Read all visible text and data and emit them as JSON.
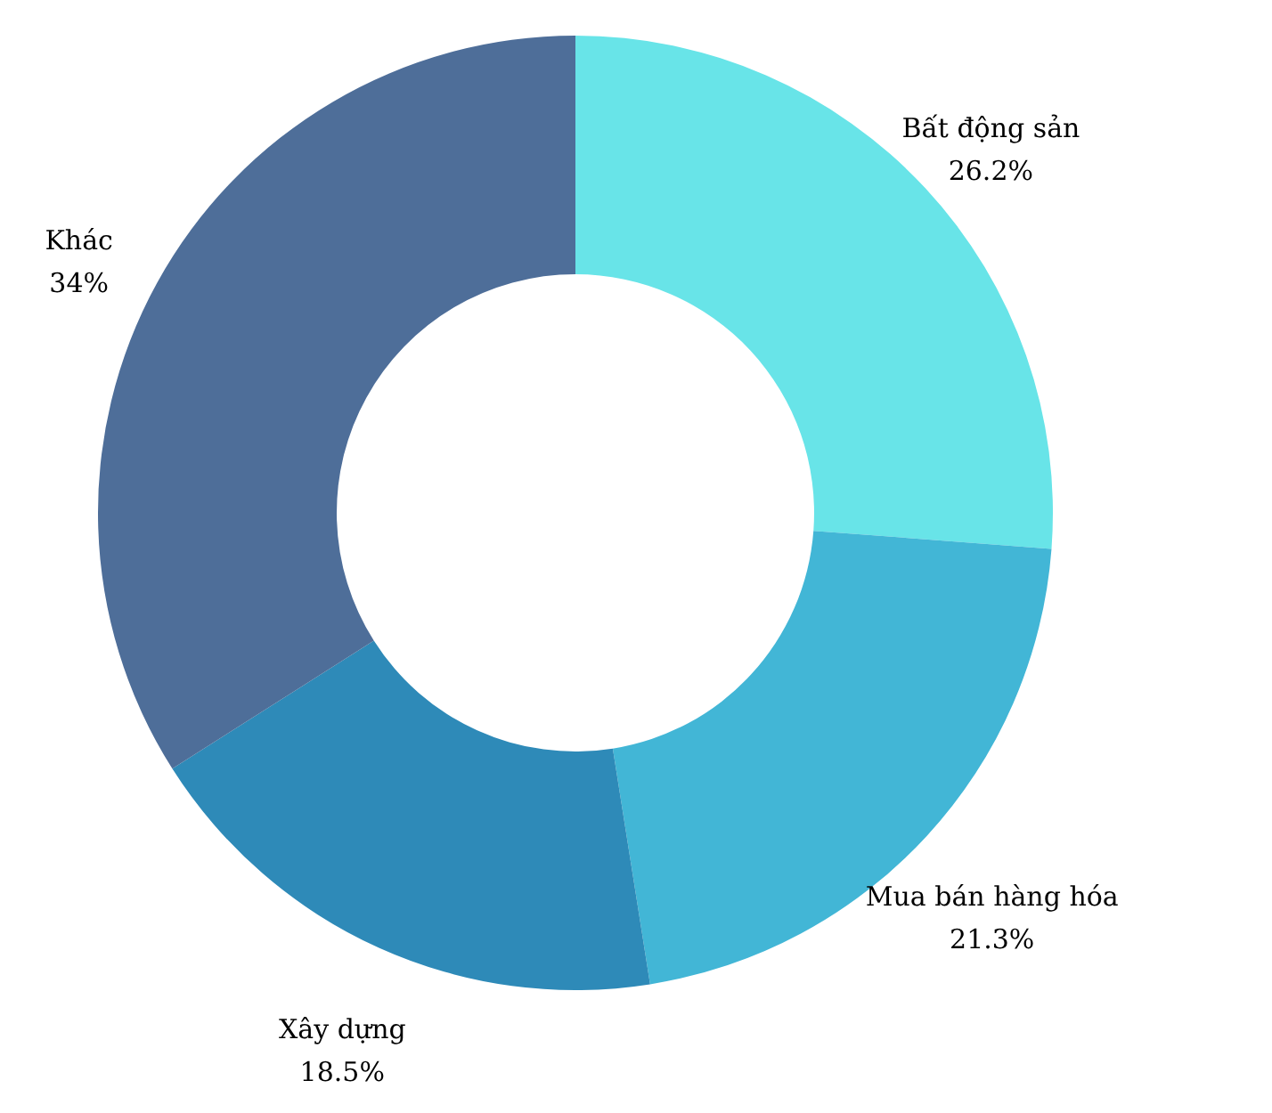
{
  "chart_data": {
    "type": "donut",
    "categories": [
      "Bất động sản",
      "Mua bán hàng hóa",
      "Xây dựng",
      "Khác"
    ],
    "values": [
      26.2,
      21.3,
      18.5,
      34
    ],
    "value_labels": [
      "26.2%",
      "21.3%",
      "18.5%",
      "34%"
    ],
    "colors": [
      "#68e4e8",
      "#42b6d6",
      "#2e8ab8",
      "#4e6e99"
    ]
  }
}
